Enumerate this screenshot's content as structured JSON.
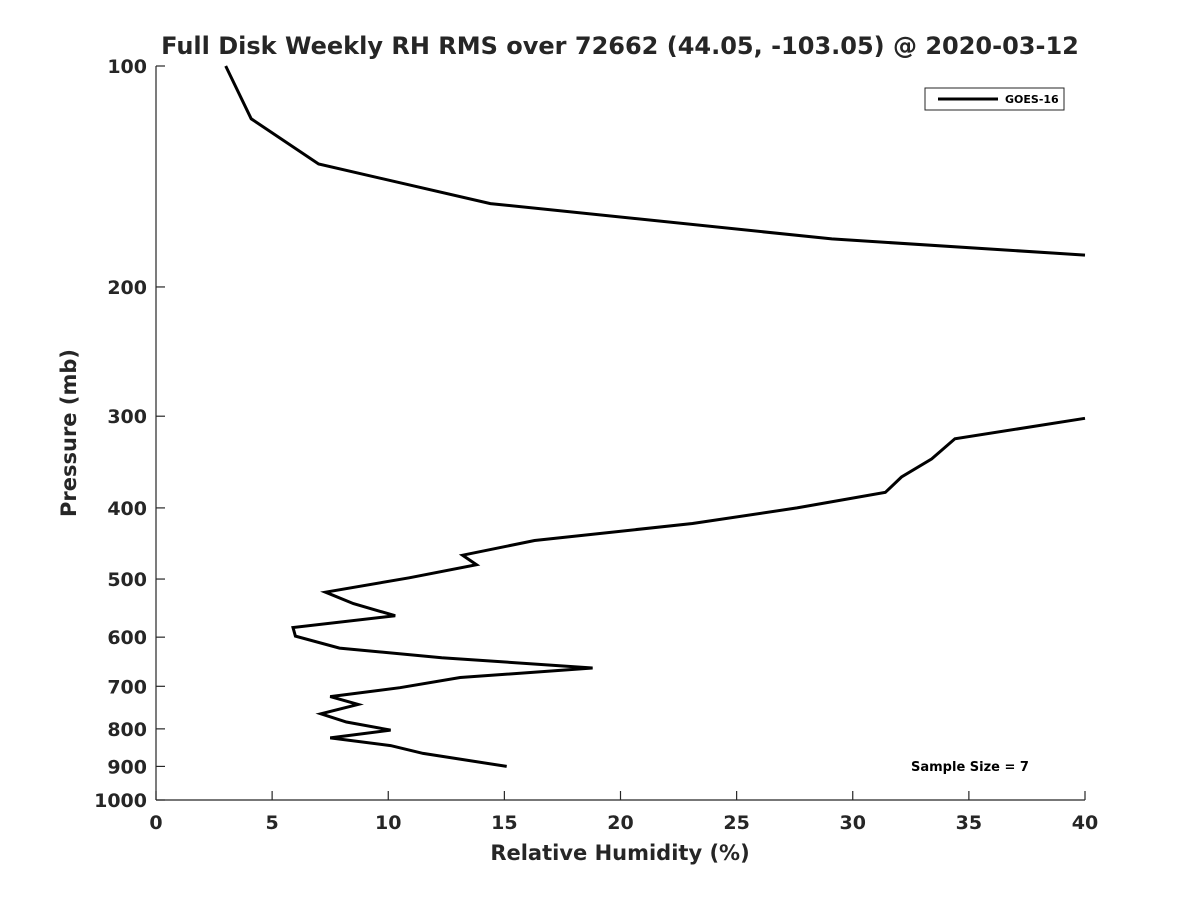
{
  "chart_data": {
    "type": "line",
    "title": "Full Disk Weekly RH RMS over 72662 (44.05, -103.05) @ 2020-03-12",
    "xlabel": "Relative Humidity (%)",
    "ylabel": "Pressure (mb)",
    "xlim": [
      0,
      40
    ],
    "ylim": [
      100,
      1000
    ],
    "y_scale": "log",
    "y_inverted": true,
    "grid": false,
    "x_ticks": [
      "0",
      "5",
      "10",
      "15",
      "20",
      "25",
      "30",
      "35",
      "40"
    ],
    "y_ticks": [
      "100",
      "200",
      "300",
      "400",
      "500",
      "600",
      "700",
      "800",
      "900",
      "1000"
    ],
    "legend": {
      "position": "top-right",
      "entries": [
        "GOES-16"
      ]
    },
    "annotation": "Sample Size = 7",
    "colors": {
      "series": "#000000",
      "axes": "#262626"
    },
    "series": [
      {
        "name": "GOES-16",
        "segments": [
          [
            [
              3.0,
              100
            ],
            [
              4.1,
              118
            ],
            [
              7.0,
              136
            ],
            [
              14.4,
              154
            ],
            [
              29.1,
              172
            ],
            [
              40.0,
              181
            ]
          ],
          [
            [
              40.0,
              302
            ],
            [
              34.4,
              322
            ],
            [
              33.4,
              343
            ],
            [
              32.1,
              363
            ],
            [
              31.4,
              381
            ],
            [
              27.6,
              400
            ],
            [
              23.1,
              420
            ],
            [
              16.3,
              443
            ],
            [
              13.2,
              464
            ],
            [
              13.8,
              478
            ],
            [
              10.9,
              498
            ],
            [
              7.3,
              521
            ],
            [
              8.5,
              540
            ],
            [
              10.3,
              561
            ],
            [
              5.9,
              582
            ],
            [
              6.0,
              598
            ],
            [
              7.9,
              621
            ],
            [
              12.3,
              640
            ],
            [
              18.8,
              661
            ],
            [
              13.1,
              681
            ],
            [
              10.5,
              703
            ],
            [
              7.5,
              723
            ],
            [
              8.7,
              741
            ],
            [
              7.1,
              763
            ],
            [
              8.2,
              783
            ],
            [
              10.1,
              803
            ],
            [
              7.5,
              823
            ],
            [
              10.1,
              843
            ],
            [
              11.5,
              864
            ],
            [
              15.1,
              900
            ]
          ]
        ]
      }
    ]
  }
}
